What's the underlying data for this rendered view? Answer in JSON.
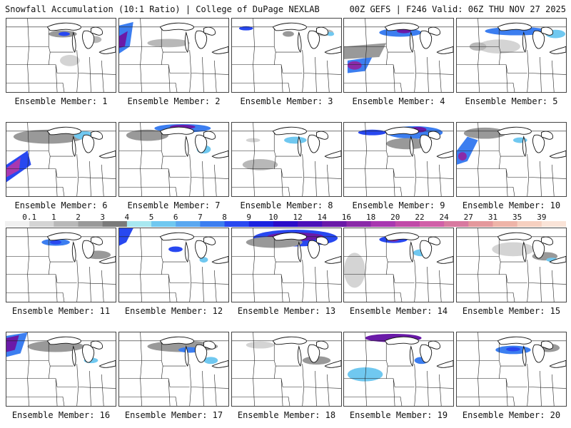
{
  "header": {
    "title": "Snowfall Accumulation (10:1 Ratio) | College of DuPage NEXLAB",
    "run": "00Z GEFS | F246 Valid: 06Z THU NOV 27 2025"
  },
  "panels": [
    {
      "label": "Ensemble Member: 1"
    },
    {
      "label": "Ensemble Member: 2"
    },
    {
      "label": "Ensemble Member: 3"
    },
    {
      "label": "Ensemble Member: 4"
    },
    {
      "label": "Ensemble Member: 5"
    },
    {
      "label": "Ensemble Member: 6"
    },
    {
      "label": "Ensemble Member: 7"
    },
    {
      "label": "Ensemble Member: 8"
    },
    {
      "label": "Ensemble Member: 9"
    },
    {
      "label": "Ensemble Member: 10"
    },
    {
      "label": "Ensemble Member: 11"
    },
    {
      "label": "Ensemble Member: 12"
    },
    {
      "label": "Ensemble Member: 13"
    },
    {
      "label": "Ensemble Member: 14"
    },
    {
      "label": "Ensemble Member: 15"
    },
    {
      "label": "Ensemble Member: 16"
    },
    {
      "label": "Ensemble Member: 17"
    },
    {
      "label": "Ensemble Member: 18"
    },
    {
      "label": "Ensemble Member: 19"
    },
    {
      "label": "Ensemble Member: 20"
    }
  ],
  "legend": {
    "values": [
      "0.1",
      "1",
      "2",
      "3",
      "4",
      "5",
      "6",
      "7",
      "8",
      "9",
      "10",
      "12",
      "14",
      "16",
      "18",
      "20",
      "22",
      "24",
      "27",
      "31",
      "35",
      "39"
    ],
    "colors": [
      "#f0f0f0",
      "#d4d4d4",
      "#b8b8b8",
      "#999999",
      "#7a7a7a",
      "#a8e8f0",
      "#70c8f0",
      "#5aa8f0",
      "#3c7ef0",
      "#2848f0",
      "#1a22e0",
      "#2a0cc8",
      "#4a10b8",
      "#6a1aa8",
      "#8a2aa8",
      "#a838b0",
      "#c04aa8",
      "#d060a8",
      "#d87aa0",
      "#e4989c",
      "#eeb4a8",
      "#f6d0c0",
      "#fae4d8"
    ]
  }
}
